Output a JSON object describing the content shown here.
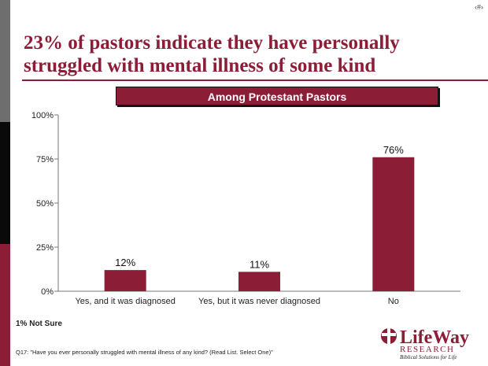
{
  "page_number": "‹#›",
  "title": "23% of pastors indicate they have personally struggled with mental illness of some kind",
  "banner": "Among Protestant Pastors",
  "note": "1% Not Sure",
  "question": "Q17: \"Have you ever personally struggled with mental illness of any kind? (Read List. Select One)\"",
  "logo": {
    "name": "LifeWay",
    "sub": "RESEARCH",
    "tagline": "Biblical Solutions for Life"
  },
  "colors": {
    "accent": "#8c1d36",
    "stripe_gray": "#6e6e6e",
    "stripe_black": "#0a0a0a"
  },
  "chart_data": {
    "type": "bar",
    "categories": [
      "Yes, and it was diagnosed",
      "Yes, but it was never diagnosed",
      "No"
    ],
    "values": [
      12,
      11,
      76
    ],
    "data_labels": [
      "12%",
      "11%",
      "76%"
    ],
    "ylim": [
      0,
      100
    ],
    "yticks": [
      0,
      25,
      50,
      75,
      100
    ],
    "ytick_labels": [
      "0%",
      "25%",
      "50%",
      "75%",
      "100%"
    ],
    "grid": false,
    "bar_color": "#8c1d36"
  }
}
